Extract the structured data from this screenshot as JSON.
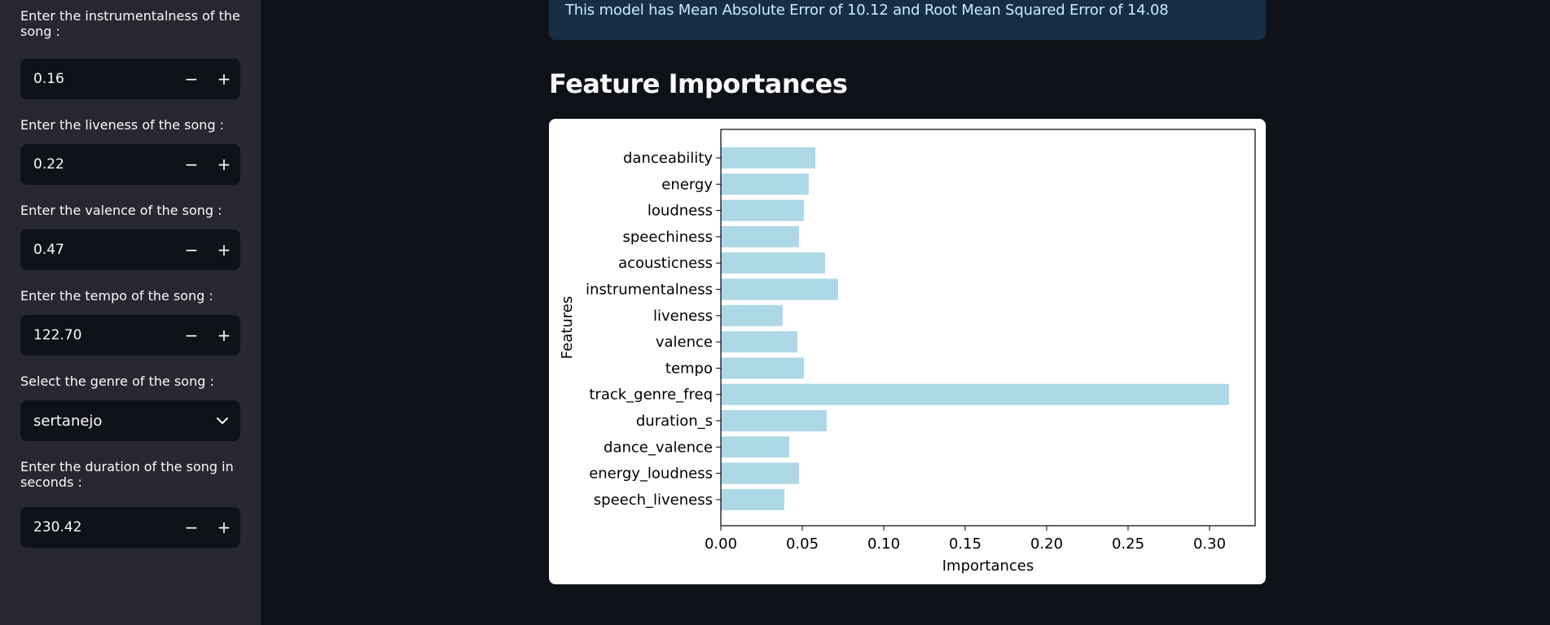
{
  "sidebar": {
    "instrumentalness": {
      "label": "Enter the instrumentalness of the song :",
      "value": "0.16"
    },
    "liveness": {
      "label": "Enter the liveness of the song :",
      "value": "0.22"
    },
    "valence": {
      "label": "Enter the valence of the song :",
      "value": "0.47"
    },
    "tempo": {
      "label": "Enter the tempo of the song :",
      "value": "122.70"
    },
    "genre": {
      "label": "Select the genre of the song :",
      "value": "sertanejo"
    },
    "duration": {
      "label": "Enter the duration of the song in seconds :",
      "value": "230.42"
    },
    "minus_symbol": "−",
    "plus_symbol": "+"
  },
  "main": {
    "info_text": "This model has Mean Absolute Error of 10.12 and Root Mean Squared Error of 14.08",
    "section_title": "Feature Importances"
  },
  "colors": {
    "bar": "#add8e6",
    "sidebar_bg": "#262730",
    "page_bg": "#0e1117",
    "info_bg": "#172d43",
    "info_text": "#c7ebff"
  },
  "chart_data": {
    "type": "bar",
    "orientation": "horizontal",
    "categories": [
      "danceability",
      "energy",
      "loudness",
      "speechiness",
      "acousticness",
      "instrumentalness",
      "liveness",
      "valence",
      "tempo",
      "track_genre_freq",
      "duration_s",
      "dance_valence",
      "energy_loudness",
      "speech_liveness"
    ],
    "values": [
      0.058,
      0.054,
      0.051,
      0.048,
      0.064,
      0.072,
      0.038,
      0.047,
      0.051,
      0.312,
      0.065,
      0.042,
      0.048,
      0.039
    ],
    "xlabel": "Importances",
    "ylabel": "Features",
    "xlim": [
      0,
      0.328
    ],
    "xticks": [
      "0.00",
      "0.05",
      "0.10",
      "0.15",
      "0.20",
      "0.25",
      "0.30"
    ],
    "grid": false,
    "legend": false
  }
}
